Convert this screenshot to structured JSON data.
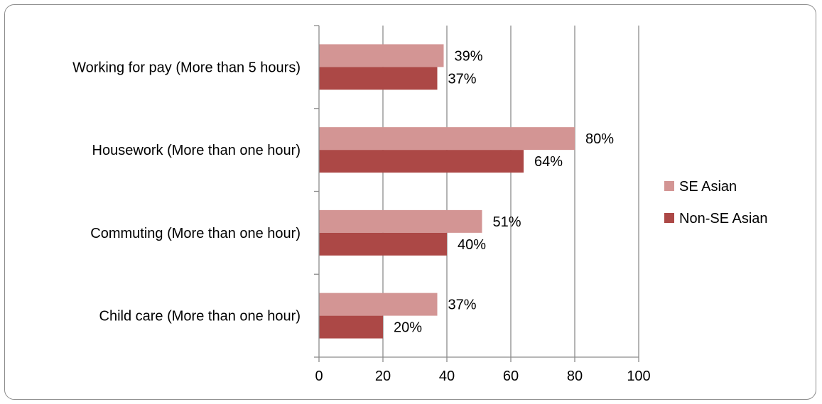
{
  "chart_data": {
    "type": "bar",
    "orientation": "horizontal",
    "title": "",
    "xlabel": "",
    "ylabel": "",
    "categories": [
      "Working for pay (More than 5 hours)",
      "Housework (More than one hour)",
      "Commuting (More than one hour)",
      "Child care (More than one hour)"
    ],
    "series": [
      {
        "name": "SE Asian",
        "color": "#d39594",
        "values": [
          39,
          80,
          51,
          37
        ],
        "labels": [
          "39%",
          "80%",
          "51%",
          "37%"
        ]
      },
      {
        "name": "Non-SE Asian",
        "color": "#ac4846",
        "values": [
          37,
          64,
          40,
          20
        ],
        "labels": [
          "37%",
          "64%",
          "40%",
          "20%"
        ]
      }
    ],
    "xlim": [
      0,
      100
    ],
    "xticks": [
      0,
      20,
      40,
      60,
      80,
      100
    ],
    "xtick_labels": [
      "0",
      "20",
      "40",
      "60",
      "80",
      "100"
    ],
    "grid": true,
    "legend_position": "right"
  }
}
